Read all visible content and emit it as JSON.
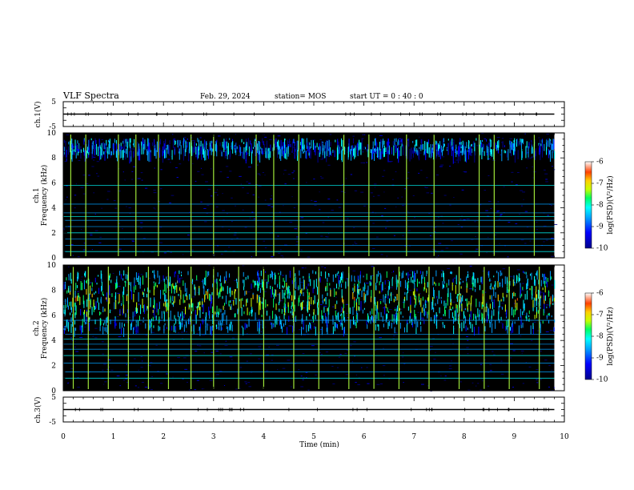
{
  "header": {
    "title": "VLF Spectra",
    "date": "Feb. 29, 2024",
    "station": "station= MOS",
    "start_ut": "start  UT =   0 : 40 : 0"
  },
  "chart_data": [
    {
      "type": "line",
      "name": "ch1-voltage",
      "ylabel": "ch.1(V)",
      "ylim": [
        -5,
        5
      ],
      "ytick_labels": [
        "5",
        "-5"
      ],
      "x": [
        0,
        9.8
      ],
      "y": [
        0,
        0
      ]
    },
    {
      "type": "heatmap",
      "name": "ch1-spectrogram",
      "ylabel_line1": "ch.1",
      "ylabel_line2": "Frequency (kHz)",
      "ylim": [
        0,
        10
      ],
      "ytick_labels": [
        "0",
        "2",
        "4",
        "6",
        "8",
        "10"
      ],
      "xlim": [
        0,
        10
      ],
      "data_end_min": 9.8,
      "emission_band_khz": [
        8.5,
        9.6
      ],
      "lines_khz": [
        0.5,
        1.0,
        1.5,
        2.0,
        2.5,
        3.0,
        3.3,
        3.6,
        4.3,
        5.8
      ],
      "sferic_times_min": [
        0.15,
        0.45,
        1.1,
        1.45,
        1.9,
        2.55,
        3.0,
        3.85,
        4.2,
        4.7,
        5.6,
        6.1,
        6.85,
        7.4,
        8.3,
        8.6,
        9.4
      ],
      "colorbar": {
        "label": "log(PSD)(V²/Hz)",
        "range": [
          -10,
          -6
        ],
        "tick_labels": [
          "-6",
          "-7",
          "-8",
          "-9",
          "-10"
        ]
      }
    },
    {
      "type": "heatmap",
      "name": "ch2-spectrogram",
      "ylabel_line1": "ch.2",
      "ylabel_line2": "Frequency (kHz)",
      "ylim": [
        0,
        10
      ],
      "ytick_labels": [
        "0",
        "2",
        "4",
        "6",
        "8",
        "10"
      ],
      "xlim": [
        0,
        10
      ],
      "data_end_min": 9.8,
      "emission_band_khz": [
        5.0,
        9.6
      ],
      "lines_khz": [
        1.0,
        1.5,
        2.2,
        2.8,
        3.3,
        3.7,
        4.1,
        4.5,
        5.6
      ],
      "sferic_times_min": [
        0.2,
        0.5,
        0.9,
        1.3,
        1.7,
        2.1,
        2.55,
        3.0,
        3.5,
        4.0,
        4.6,
        5.1,
        5.7,
        6.2,
        6.7,
        7.3,
        7.9,
        8.4,
        8.9,
        9.5
      ],
      "colorbar": {
        "label": "log(PSD)(V²/Hz)",
        "range": [
          -10,
          -6
        ],
        "tick_labels": [
          "-6",
          "-7",
          "-8",
          "-9",
          "-10"
        ]
      }
    },
    {
      "type": "line",
      "name": "ch3-voltage",
      "ylabel": "ch.3(V)",
      "ylim": [
        -5,
        5
      ],
      "ytick_labels": [
        "5",
        "-5"
      ],
      "x": [
        0,
        9.8
      ],
      "y": [
        0,
        0
      ]
    }
  ],
  "xaxis": {
    "label": "Time (min)",
    "range": [
      0,
      10
    ],
    "tick_labels": [
      "0",
      "1",
      "2",
      "3",
      "4",
      "5",
      "6",
      "7",
      "8",
      "9",
      "10"
    ]
  },
  "colors": {
    "background": "#000000",
    "colormap": [
      "#00008c",
      "#0000ff",
      "#00a0ff",
      "#00ffff",
      "#00ff60",
      "#c8ff00",
      "#ffd000",
      "#ff4000",
      "#ffffff"
    ]
  }
}
